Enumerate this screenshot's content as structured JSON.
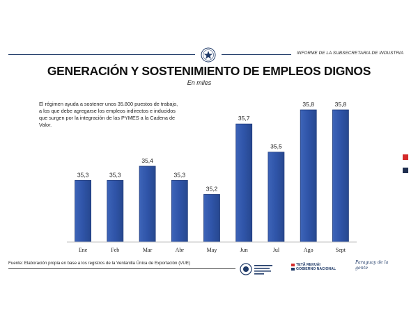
{
  "header": {
    "report_label": "INFORME DE LA SUBSECRETARIA DE INDUSTRIA"
  },
  "note": "El régimen ayuda a sostener unos 35.800 puestos de trabajo, a los que debe agregarse los empleos indirectos e inducidos que surgen por la integración de las PYMES a la Cadena de Valor.",
  "footer": {
    "source": "Fuente: Elaboración propia en base a los registros de la Ventanilla Única de Exportación (VUE)",
    "logo_gov_line1": "TETÃ REKUÁI",
    "logo_gov_line2": "GOBIERNO NACIONAL",
    "logo_slogan": "Paraguay de la gente"
  },
  "colors": {
    "bar": "#2f54a8",
    "bar_edge": "#1f3a7a",
    "accent_red": "#d42b2b",
    "accent_navy": "#1f2e4f"
  },
  "icons": [
    "star-seal-icon",
    "ministry-logo-icon"
  ],
  "chart_data": {
    "type": "bar",
    "title": "GENERACIÓN Y SOSTENIMIENTO DE EMPLEOS DIGNOS",
    "subtitle": "En miles",
    "categories": [
      "Ene",
      "Feb",
      "Mar",
      "Abr",
      "May",
      "Jun",
      "Jul",
      "Ago",
      "Sept"
    ],
    "values": [
      35.3,
      35.3,
      35.4,
      35.3,
      35.2,
      35.7,
      35.5,
      35.8,
      35.8
    ],
    "value_labels": [
      "35,3",
      "35,3",
      "35,4",
      "35,3",
      "35,2",
      "35,7",
      "35,5",
      "35,8",
      "35,8"
    ],
    "xlabel": "",
    "ylabel": "",
    "ylim": [
      35.0,
      35.8
    ],
    "grid": false,
    "legend": "none"
  }
}
